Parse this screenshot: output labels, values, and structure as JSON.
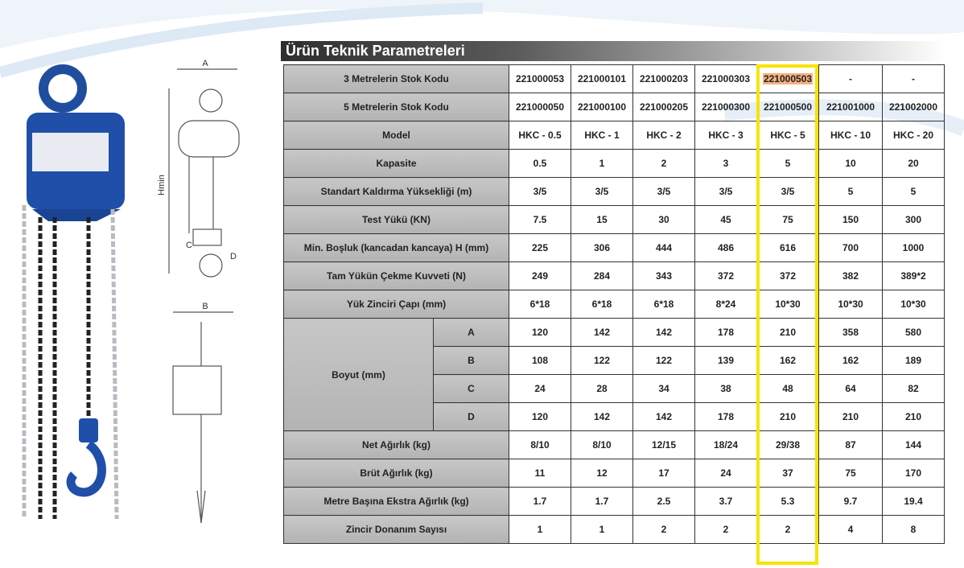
{
  "title": "Ürün Teknik Parametreleri",
  "diagram": {
    "labels": [
      "A",
      "Hmin",
      "C",
      "D",
      "B"
    ]
  },
  "table": {
    "rows_top": [
      {
        "label": "3 Metrelerin Stok Kodu",
        "cells": [
          "221000053",
          "221000101",
          "221000203",
          "221000303",
          "221000503",
          "-",
          "-"
        ]
      },
      {
        "label": "5 Metrelerin Stok Kodu",
        "cells": [
          "221000050",
          "221000100",
          "221000205",
          "221000300",
          "221000500",
          "221001000",
          "221002000"
        ]
      },
      {
        "label": "Model",
        "cells": [
          "HKC - 0.5",
          "HKC - 1",
          "HKC - 2",
          "HKC - 3",
          "HKC - 5",
          "HKC - 10",
          "HKC - 20"
        ]
      },
      {
        "label": "Kapasite",
        "cells": [
          "0.5",
          "1",
          "2",
          "3",
          "5",
          "10",
          "20"
        ]
      },
      {
        "label": "Standart Kaldırma Yüksekliği (m)",
        "cells": [
          "3/5",
          "3/5",
          "3/5",
          "3/5",
          "3/5",
          "5",
          "5"
        ]
      },
      {
        "label": "Test Yükü (KN)",
        "cells": [
          "7.5",
          "15",
          "30",
          "45",
          "75",
          "150",
          "300"
        ]
      },
      {
        "label": "Min. Boşluk (kancadan kancaya) H (mm)",
        "cells": [
          "225",
          "306",
          "444",
          "486",
          "616",
          "700",
          "1000"
        ]
      },
      {
        "label": "Tam Yükün Çekme Kuvveti (N)",
        "cells": [
          "249",
          "284",
          "343",
          "372",
          "372",
          "382",
          "389*2"
        ]
      },
      {
        "label": "Yük Zinciri Çapı (mm)",
        "cells": [
          "6*18",
          "6*18",
          "6*18",
          "8*24",
          "10*30",
          "10*30",
          "10*30"
        ]
      }
    ],
    "size_group": {
      "label": "Boyut (mm)",
      "rows": [
        {
          "label": "A",
          "cells": [
            "120",
            "142",
            "142",
            "178",
            "210",
            "358",
            "580"
          ]
        },
        {
          "label": "B",
          "cells": [
            "108",
            "122",
            "122",
            "139",
            "162",
            "162",
            "189"
          ]
        },
        {
          "label": "C",
          "cells": [
            "24",
            "28",
            "34",
            "38",
            "48",
            "64",
            "82"
          ]
        },
        {
          "label": "D",
          "cells": [
            "120",
            "142",
            "142",
            "178",
            "210",
            "210",
            "210"
          ]
        }
      ]
    },
    "rows_bottom": [
      {
        "label": "Net Ağırlık (kg)",
        "cells": [
          "8/10",
          "8/10",
          "12/15",
          "18/24",
          "29/38",
          "87",
          "144"
        ]
      },
      {
        "label": "Brüt Ağırlık (kg)",
        "cells": [
          "11",
          "12",
          "17",
          "24",
          "37",
          "75",
          "170"
        ]
      },
      {
        "label": "Metre Başına Ekstra Ağırlık (kg)",
        "cells": [
          "1.7",
          "1.7",
          "2.5",
          "3.7",
          "5.3",
          "9.7",
          "19.4"
        ]
      },
      {
        "label": "Zincir Donanım Sayısı",
        "cells": [
          "1",
          "1",
          "2",
          "2",
          "2",
          "4",
          "8"
        ]
      }
    ]
  }
}
